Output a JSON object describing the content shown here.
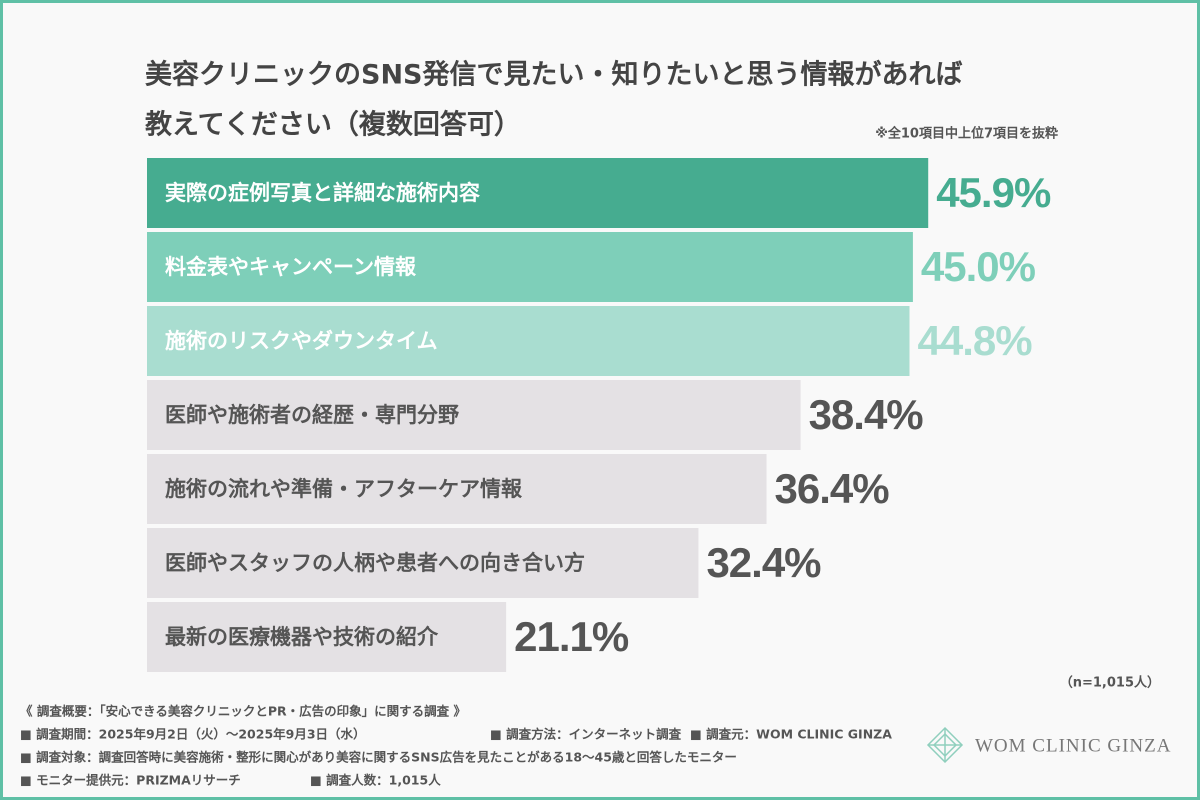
{
  "chart_data": {
    "type": "hbar",
    "title": [
      "美容クリニックのSNS発信で見たい・知りたいと思う情報があれば",
      "教えてください（複数回答可）"
    ],
    "note": "※全10項目中上位7項目を抜粋",
    "categories": [
      "実際の症例写真と詳細な施術内容",
      "料金表やキャンペーン情報",
      "施術のリスクやダウンタイム",
      "医師や施術者の経歴・専門分野",
      "施術の流れや準備・アフターケア情報",
      "医師やスタッフの人柄や患者への向き合い方",
      "最新の医療機器や技術の紹介"
    ],
    "values": [
      45.9,
      45.0,
      44.8,
      38.4,
      36.4,
      32.4,
      21.1
    ],
    "value_labels": [
      "45.9%",
      "45.0%",
      "44.8%",
      "38.4%",
      "36.4%",
      "32.4%",
      "21.1%"
    ],
    "colors": [
      "#46ac90",
      "#7ecfb9",
      "#a9ddd0",
      "#e4e1e4",
      "#e4e1e4",
      "#e4e1e4",
      "#e4e1e4"
    ],
    "category_label_colors": [
      "#ffffff",
      "#ffffff",
      "#ffffff",
      "#555555",
      "#555555",
      "#555555",
      "#555555"
    ],
    "value_label_colors": [
      "#46ac90",
      "#7ecfb9",
      "#a9ddd0",
      "#555555",
      "#555555",
      "#555555",
      "#555555"
    ],
    "xlim": [
      0,
      50
    ],
    "sample": "（n=1,015人）",
    "footer": [
      [
        "《 調査概要：「安心できる美容クリニックとPR・広告の印象」に関する調査 》"
      ],
      [
        "■ 調査期間：2025年9月2日（火）～2025年9月3日（水）",
        "■ 調査方法：インターネット調査",
        "■ 調査元：WOM CLINIC GINZA"
      ],
      [
        "■ 調査対象：調査回答時に美容施術・整形に関心があり美容に関するSNS広告を見たことがある18～45歳と回答したモニター"
      ],
      [
        "■ モニター提供元：PRIZMAリサーチ",
        "■ 調査人数：1,015人"
      ]
    ],
    "logo": "WOM CLINIC GINZA"
  }
}
